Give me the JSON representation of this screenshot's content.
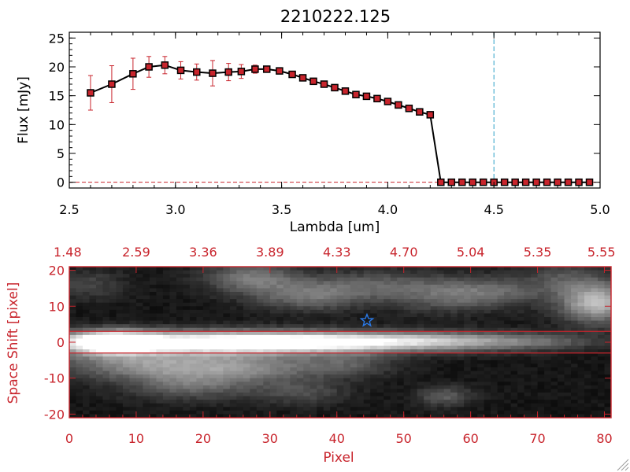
{
  "chart_data": [
    {
      "type": "line",
      "title": "2210222.125",
      "xlabel": "Lambda [um]",
      "ylabel": "Flux [mJy]",
      "xlim": [
        2.5,
        5.0
      ],
      "ylim": [
        -1,
        26
      ],
      "x_ticks": [
        2.5,
        3.0,
        3.5,
        4.0,
        4.5,
        5.0
      ],
      "x_tick_labels": [
        "2.5",
        "3.0",
        "3.5",
        "4.0",
        "4.5",
        "5.0"
      ],
      "y_ticks": [
        0,
        5,
        10,
        15,
        20,
        25
      ],
      "y_tick_labels": [
        "0",
        "5",
        "10",
        "15",
        "20",
        "25"
      ],
      "grid": false,
      "vertical_marker_x": 4.5,
      "colors": {
        "line": "#000000",
        "marker": "#c8242c",
        "errorbar": "#c8242c",
        "vline": "#2aa0c8",
        "zero_line": "#c8242c"
      },
      "series": [
        {
          "x": [
            2.6,
            2.7,
            2.8,
            2.875,
            2.95,
            3.025,
            3.1,
            3.175,
            3.25,
            3.31,
            3.375,
            3.43,
            3.49,
            3.55,
            3.6,
            3.65,
            3.7,
            3.75,
            3.8,
            3.85,
            3.9,
            3.95,
            4.0,
            4.05,
            4.1,
            4.15,
            4.2,
            4.25,
            4.3,
            4.35,
            4.4,
            4.45,
            4.5,
            4.55,
            4.6,
            4.65,
            4.7,
            4.75,
            4.8,
            4.85,
            4.9,
            4.95
          ],
          "y": [
            15.5,
            17.0,
            18.8,
            20.0,
            20.3,
            19.4,
            19.1,
            18.9,
            19.1,
            19.2,
            19.6,
            19.6,
            19.3,
            18.7,
            18.1,
            17.5,
            17.0,
            16.4,
            15.8,
            15.2,
            14.9,
            14.5,
            14.0,
            13.4,
            12.8,
            12.2,
            11.7,
            0,
            0,
            0,
            0,
            0,
            0,
            0,
            0,
            0,
            0,
            0,
            0,
            0,
            0,
            0
          ],
          "yerr": [
            3.0,
            3.2,
            2.7,
            1.8,
            1.5,
            1.5,
            1.4,
            2.2,
            1.5,
            1.2,
            0.7,
            0.5,
            0.4,
            0.3,
            0.3,
            0.3,
            0.3,
            0.3,
            0.3,
            0.3,
            0.3,
            0.3,
            0.3,
            0.3,
            0.3,
            0.3,
            0.3,
            0,
            0,
            0,
            0,
            0,
            0,
            0,
            0,
            0,
            0,
            0,
            0,
            0,
            0,
            0
          ]
        }
      ]
    },
    {
      "type": "heatmap",
      "xlabel": "Pixel",
      "ylabel": "Space Shift [pixel]",
      "xlim": [
        0,
        81
      ],
      "ylim": [
        -21,
        21
      ],
      "x_ticks": [
        0,
        10,
        20,
        30,
        40,
        50,
        60,
        70,
        80
      ],
      "x_tick_labels": [
        "0",
        "10",
        "20",
        "30",
        "40",
        "50",
        "60",
        "70",
        "80"
      ],
      "y_ticks": [
        -20,
        -10,
        0,
        10,
        20
      ],
      "y_tick_labels": [
        "-20",
        "-10",
        "0",
        "10",
        "20"
      ],
      "top_axis_tick_labels": [
        "1.48",
        "2.59",
        "3.36",
        "3.89",
        "4.33",
        "4.70",
        "5.04",
        "5.35",
        "5.55"
      ],
      "aperture_lines_y": [
        3,
        -3
      ],
      "star_marker": {
        "x": 44.5,
        "y": 6
      },
      "colormap": "grayscale",
      "colors": {
        "axes": "#c8242c",
        "star": "#2a7ae8",
        "aperture": "#c8242c"
      },
      "blobs": [
        {
          "x": 6,
          "y": 0,
          "sx": 5,
          "sy": 2.2,
          "v": 1.0
        },
        {
          "x": 22,
          "y": 0,
          "sx": 14,
          "sy": 2.2,
          "v": 0.85
        },
        {
          "x": 40,
          "y": 0,
          "sx": 14,
          "sy": 2.0,
          "v": 0.6
        },
        {
          "x": 58,
          "y": 0.3,
          "sx": 11,
          "sy": 1.8,
          "v": 0.38
        },
        {
          "x": 72,
          "y": 0,
          "sx": 6,
          "sy": 1.5,
          "v": 0.12
        },
        {
          "x": 12,
          "y": -6,
          "sx": 10,
          "sy": 3.0,
          "v": 0.45
        },
        {
          "x": 28,
          "y": -7,
          "sx": 8,
          "sy": 3.0,
          "v": 0.32
        },
        {
          "x": 42,
          "y": -6,
          "sx": 5,
          "sy": 2.5,
          "v": 0.22
        },
        {
          "x": 18,
          "y": -12,
          "sx": 7,
          "sy": 3.0,
          "v": 0.3
        },
        {
          "x": 35,
          "y": -14,
          "sx": 5,
          "sy": 2.5,
          "v": 0.2
        },
        {
          "x": 56,
          "y": -15,
          "sx": 3,
          "sy": 2.0,
          "v": 0.28
        },
        {
          "x": 3,
          "y": 16,
          "sx": 4,
          "sy": 3.0,
          "v": 0.18
        },
        {
          "x": 27,
          "y": 18,
          "sx": 5,
          "sy": 3.0,
          "v": 0.38
        },
        {
          "x": 36,
          "y": 13,
          "sx": 6,
          "sy": 3.0,
          "v": 0.35
        },
        {
          "x": 47,
          "y": 16,
          "sx": 7,
          "sy": 3.0,
          "v": 0.25
        },
        {
          "x": 55,
          "y": 12,
          "sx": 5,
          "sy": 3.0,
          "v": 0.18
        },
        {
          "x": 63,
          "y": 14,
          "sx": 6,
          "sy": 3.0,
          "v": 0.32
        },
        {
          "x": 79,
          "y": 11,
          "sx": 4,
          "sy": 4.0,
          "v": 0.65
        },
        {
          "x": 74,
          "y": 18,
          "sx": 4,
          "sy": 3.0,
          "v": 0.2
        }
      ]
    }
  ]
}
